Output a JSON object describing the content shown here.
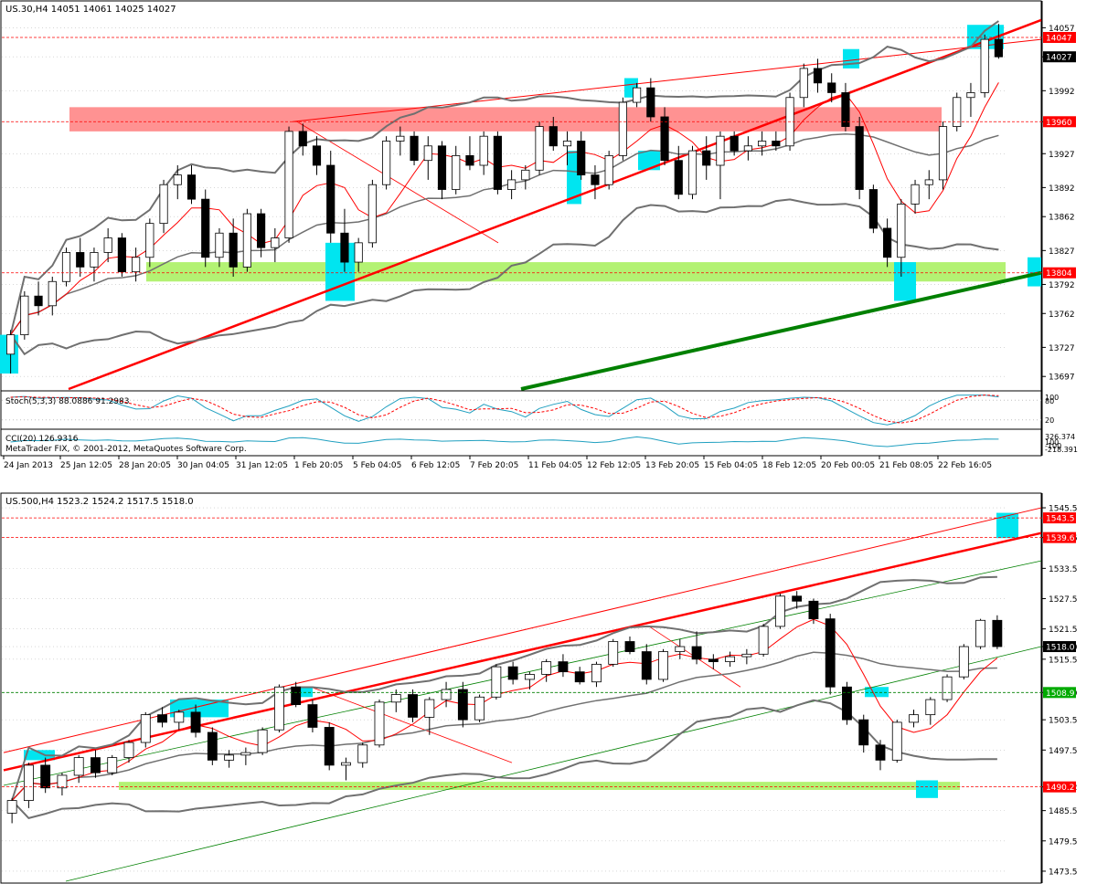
{
  "colors": {
    "background": "#ffffff",
    "frame": "#000000",
    "grid": "#c0c0c0",
    "bull_body": "#ffffff",
    "bear_body": "#000000",
    "bollinger": "#707070",
    "ma": "#ff0000",
    "level_line": "#ff0000",
    "green_level_line": "#008000",
    "zone_red": "#ff7f7f",
    "zone_green": "#a6f05a",
    "zone_cyan": "#00e5f0",
    "trend_red": "#ff0000",
    "trend_green": "#008000",
    "stoch_main": "#20a0c0",
    "stoch_signal": "#ff0000",
    "cci": "#20a0c0",
    "price_box_red": "#ff0000",
    "price_box_black": "#000000",
    "price_box_green": "#00aa00"
  },
  "chart_data": [
    {
      "type": "candlestick",
      "symbol_header": "US.30,H4  14051 14061 14025 14027",
      "y_ticks": [
        "14057",
        "14027",
        "13992",
        "13960",
        "13927",
        "13892",
        "13862",
        "13827",
        "13792",
        "13762",
        "13727",
        "13697"
      ],
      "y_tick_values": [
        14057,
        14027,
        13992,
        13960,
        13927,
        13892,
        13862,
        13827,
        13792,
        13762,
        13727,
        13697
      ],
      "ylim": [
        13684,
        14080
      ],
      "price_labels": [
        {
          "text": "14047",
          "value": 14047,
          "style": "red"
        },
        {
          "text": "14027",
          "value": 14027,
          "style": "black"
        },
        {
          "text": "13960",
          "value": 13960,
          "style": "red"
        },
        {
          "text": "13804",
          "value": 13804,
          "style": "red"
        }
      ],
      "candles_ohlc": [
        [
          13720,
          13745,
          13700,
          13740
        ],
        [
          13740,
          13785,
          13735,
          13780
        ],
        [
          13780,
          13795,
          13760,
          13770
        ],
        [
          13770,
          13800,
          13760,
          13795
        ],
        [
          13795,
          13830,
          13790,
          13825
        ],
        [
          13825,
          13840,
          13800,
          13810
        ],
        [
          13810,
          13830,
          13795,
          13825
        ],
        [
          13825,
          13850,
          13815,
          13840
        ],
        [
          13840,
          13845,
          13800,
          13805
        ],
        [
          13805,
          13830,
          13795,
          13820
        ],
        [
          13820,
          13860,
          13810,
          13855
        ],
        [
          13855,
          13900,
          13845,
          13895
        ],
        [
          13895,
          13915,
          13880,
          13905
        ],
        [
          13905,
          13915,
          13875,
          13880
        ],
        [
          13880,
          13890,
          13810,
          13820
        ],
        [
          13820,
          13850,
          13810,
          13845
        ],
        [
          13845,
          13860,
          13800,
          13810
        ],
        [
          13810,
          13870,
          13805,
          13865
        ],
        [
          13865,
          13870,
          13820,
          13830
        ],
        [
          13830,
          13850,
          13815,
          13840
        ],
        [
          13840,
          13955,
          13835,
          13950
        ],
        [
          13950,
          13958,
          13925,
          13935
        ],
        [
          13935,
          13945,
          13905,
          13915
        ],
        [
          13915,
          13930,
          13835,
          13845
        ],
        [
          13845,
          13870,
          13805,
          13815
        ],
        [
          13815,
          13840,
          13805,
          13835
        ],
        [
          13835,
          13900,
          13830,
          13895
        ],
        [
          13895,
          13945,
          13890,
          13940
        ],
        [
          13940,
          13955,
          13925,
          13945
        ],
        [
          13945,
          13950,
          13915,
          13920
        ],
        [
          13920,
          13945,
          13900,
          13935
        ],
        [
          13935,
          13940,
          13880,
          13890
        ],
        [
          13890,
          13935,
          13885,
          13925
        ],
        [
          13925,
          13945,
          13910,
          13915
        ],
        [
          13915,
          13950,
          13905,
          13945
        ],
        [
          13945,
          13950,
          13885,
          13890
        ],
        [
          13890,
          13910,
          13880,
          13900
        ],
        [
          13900,
          13915,
          13890,
          13910
        ],
        [
          13910,
          13960,
          13905,
          13955
        ],
        [
          13955,
          13965,
          13930,
          13935
        ],
        [
          13935,
          13950,
          13915,
          13940
        ],
        [
          13940,
          13950,
          13900,
          13905
        ],
        [
          13905,
          13915,
          13880,
          13895
        ],
        [
          13895,
          13930,
          13890,
          13925
        ],
        [
          13925,
          13985,
          13920,
          13980
        ],
        [
          13980,
          14000,
          13975,
          13995
        ],
        [
          13995,
          14005,
          13960,
          13965
        ],
        [
          13965,
          13975,
          13915,
          13920
        ],
        [
          13920,
          13935,
          13880,
          13885
        ],
        [
          13885,
          13935,
          13880,
          13930
        ],
        [
          13930,
          13945,
          13900,
          13915
        ],
        [
          13915,
          13950,
          13880,
          13945
        ],
        [
          13945,
          13950,
          13925,
          13930
        ],
        [
          13930,
          13945,
          13920,
          13935
        ],
        [
          13935,
          13950,
          13925,
          13940
        ],
        [
          13940,
          13950,
          13930,
          13935
        ],
        [
          13935,
          13990,
          13930,
          13985
        ],
        [
          13985,
          14020,
          13975,
          14015
        ],
        [
          14015,
          14025,
          13990,
          14000
        ],
        [
          14000,
          14010,
          13980,
          13990
        ],
        [
          13990,
          14000,
          13950,
          13955
        ],
        [
          13955,
          13965,
          13880,
          13890
        ],
        [
          13890,
          13895,
          13845,
          13850
        ],
        [
          13850,
          13860,
          13810,
          13820
        ],
        [
          13820,
          13880,
          13800,
          13875
        ],
        [
          13875,
          13900,
          13865,
          13895
        ],
        [
          13895,
          13910,
          13880,
          13900
        ],
        [
          13900,
          13960,
          13890,
          13955
        ],
        [
          13955,
          13990,
          13950,
          13985
        ],
        [
          13985,
          14000,
          13965,
          13990
        ],
        [
          13990,
          14050,
          13985,
          14045
        ],
        [
          14045,
          14061,
          14025,
          14027
        ]
      ],
      "stochastic": {
        "label": "Stoch(5,3,3) 88.0886 91.2983",
        "ticks": [
          "100",
          "80",
          "20"
        ]
      },
      "cci": {
        "label": "CCI(20) 126.9316",
        "ticks": [
          "326.374",
          "100",
          "-100",
          "-218.391"
        ]
      },
      "copyright": "MetaTrader FIX, © 2001-2012, MetaQuotes Software Corp.",
      "x_ticks": [
        "24 Jan 2013",
        "25 Jan 12:05",
        "28 Jan 20:05",
        "30 Jan 04:05",
        "31 Jan 12:05",
        "1 Feb 20:05",
        "5 Feb 04:05",
        "6 Feb 12:05",
        "7 Feb 20:05",
        "11 Feb 04:05",
        "12 Feb 12:05",
        "13 Feb 20:05",
        "15 Feb 04:05",
        "18 Feb 12:05",
        "20 Feb 00:05",
        "21 Feb 08:05",
        "22 Feb 16:05"
      ]
    },
    {
      "type": "candlestick",
      "symbol_header": "US.500,H4  1523.2 1524.2 1517.5 1518.0",
      "y_ticks": [
        "1545.5",
        "1539.6",
        "1533.5",
        "1527.5",
        "1521.5",
        "1518.0",
        "1515.5",
        "1508.9",
        "1503.5",
        "1497.5",
        "1490.2",
        "1485.5",
        "1479.5",
        "1473.5"
      ],
      "y_tick_values": [
        1545.5,
        1539.6,
        1533.5,
        1527.5,
        1521.5,
        1518.0,
        1515.5,
        1508.9,
        1503.5,
        1497.5,
        1490.2,
        1485.5,
        1479.5,
        1473.5
      ],
      "ylim": [
        1471.5,
        1547.5
      ],
      "price_labels": [
        {
          "text": "1543.5",
          "value": 1543.5,
          "style": "red"
        },
        {
          "text": "1539.6",
          "value": 1539.6,
          "style": "red"
        },
        {
          "text": "1518.0",
          "value": 1518.0,
          "style": "black"
        },
        {
          "text": "1508.9",
          "value": 1508.9,
          "style": "green"
        },
        {
          "text": "1490.2",
          "value": 1490.2,
          "style": "red"
        }
      ],
      "candles_ohlc": [
        [
          1485.0,
          1488.0,
          1483.0,
          1487.5
        ],
        [
          1487.5,
          1495.0,
          1486.0,
          1494.5
        ],
        [
          1494.5,
          1496.0,
          1489.0,
          1490.0
        ],
        [
          1490.0,
          1493.0,
          1488.5,
          1492.5
        ],
        [
          1492.5,
          1496.5,
          1491.0,
          1496.0
        ],
        [
          1496.0,
          1497.5,
          1492.0,
          1493.0
        ],
        [
          1493.0,
          1496.5,
          1492.5,
          1496.0
        ],
        [
          1496.0,
          1499.5,
          1495.0,
          1499.0
        ],
        [
          1499.0,
          1505.0,
          1498.0,
          1504.5
        ],
        [
          1504.5,
          1506.0,
          1502.0,
          1503.0
        ],
        [
          1503.0,
          1505.5,
          1501.5,
          1505.0
        ],
        [
          1505.0,
          1506.5,
          1500.0,
          1501.0
        ],
        [
          1501.0,
          1502.0,
          1494.5,
          1495.5
        ],
        [
          1495.5,
          1497.5,
          1494.0,
          1496.5
        ],
        [
          1496.5,
          1498.0,
          1494.5,
          1497.0
        ],
        [
          1497.0,
          1502.0,
          1496.5,
          1501.5
        ],
        [
          1501.5,
          1510.5,
          1501.0,
          1510.0
        ],
        [
          1510.0,
          1511.0,
          1506.0,
          1506.5
        ],
        [
          1506.5,
          1507.5,
          1501.0,
          1502.0
        ],
        [
          1502.0,
          1503.0,
          1493.5,
          1494.5
        ],
        [
          1494.5,
          1496.0,
          1491.5,
          1495.0
        ],
        [
          1495.0,
          1499.0,
          1494.0,
          1498.5
        ],
        [
          1498.5,
          1507.5,
          1498.0,
          1507.0
        ],
        [
          1507.0,
          1509.5,
          1505.0,
          1508.5
        ],
        [
          1508.5,
          1509.5,
          1503.0,
          1504.0
        ],
        [
          1504.0,
          1508.0,
          1500.5,
          1507.5
        ],
        [
          1507.5,
          1511.0,
          1506.0,
          1509.5
        ],
        [
          1509.5,
          1511.0,
          1502.0,
          1503.5
        ],
        [
          1503.5,
          1508.5,
          1503.0,
          1508.0
        ],
        [
          1508.0,
          1514.5,
          1507.5,
          1514.0
        ],
        [
          1514.0,
          1515.0,
          1510.5,
          1511.5
        ],
        [
          1511.5,
          1513.0,
          1509.5,
          1512.5
        ],
        [
          1512.5,
          1515.5,
          1511.0,
          1515.0
        ],
        [
          1515.0,
          1516.5,
          1512.0,
          1513.0
        ],
        [
          1513.0,
          1514.0,
          1510.5,
          1511.0
        ],
        [
          1511.0,
          1515.0,
          1510.0,
          1514.5
        ],
        [
          1514.5,
          1519.5,
          1514.0,
          1519.0
        ],
        [
          1519.0,
          1520.0,
          1516.5,
          1517.0
        ],
        [
          1517.0,
          1518.5,
          1510.5,
          1511.5
        ],
        [
          1511.5,
          1517.5,
          1511.0,
          1517.0
        ],
        [
          1517.0,
          1519.5,
          1515.5,
          1518.0
        ],
        [
          1518.0,
          1521.0,
          1514.5,
          1515.5
        ],
        [
          1515.5,
          1516.5,
          1513.5,
          1515.0
        ],
        [
          1515.0,
          1517.0,
          1514.0,
          1516.0
        ],
        [
          1516.0,
          1517.5,
          1514.5,
          1516.5
        ],
        [
          1516.5,
          1522.5,
          1516.0,
          1522.0
        ],
        [
          1522.0,
          1528.5,
          1521.5,
          1528.0
        ],
        [
          1528.0,
          1529.0,
          1525.5,
          1527.0
        ],
        [
          1527.0,
          1527.5,
          1522.5,
          1523.5
        ],
        [
          1523.5,
          1524.5,
          1508.5,
          1510.0
        ],
        [
          1510.0,
          1511.0,
          1502.5,
          1503.5
        ],
        [
          1503.5,
          1504.5,
          1497.0,
          1498.5
        ],
        [
          1498.5,
          1499.5,
          1493.5,
          1495.5
        ],
        [
          1495.5,
          1503.5,
          1495.0,
          1503.0
        ],
        [
          1503.0,
          1505.5,
          1502.0,
          1504.5
        ],
        [
          1504.5,
          1508.0,
          1502.5,
          1507.5
        ],
        [
          1507.5,
          1512.5,
          1507.0,
          1512.0
        ],
        [
          1512.0,
          1518.5,
          1511.5,
          1518.0
        ],
        [
          1518.0,
          1523.5,
          1517.5,
          1523.2
        ],
        [
          1523.2,
          1524.2,
          1517.5,
          1518.0
        ]
      ]
    }
  ]
}
